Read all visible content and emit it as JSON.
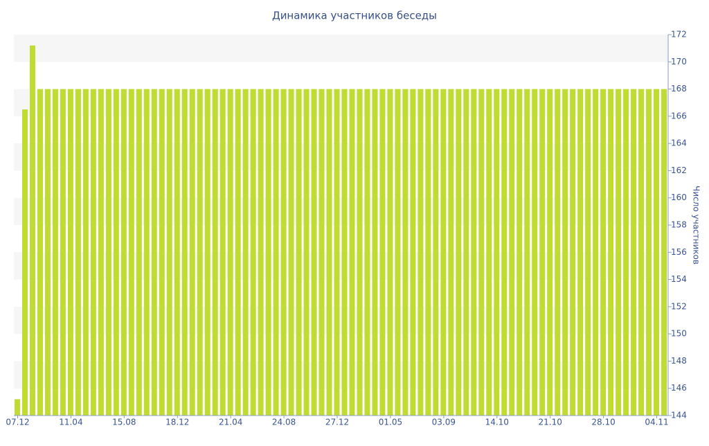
{
  "chart_data": {
    "type": "bar",
    "title": "Динамика участников беседы",
    "y_label": "Число участников",
    "categories": [
      "07.12",
      null,
      null,
      null,
      null,
      null,
      null,
      "11.04",
      null,
      null,
      null,
      null,
      null,
      null,
      "15.08",
      null,
      null,
      null,
      null,
      null,
      null,
      "18.12",
      null,
      null,
      null,
      null,
      null,
      null,
      "21.04",
      null,
      null,
      null,
      null,
      null,
      null,
      "24.08",
      null,
      null,
      null,
      null,
      null,
      null,
      "27.12",
      null,
      null,
      null,
      null,
      null,
      null,
      "01.05",
      null,
      null,
      null,
      null,
      null,
      null,
      "03.09",
      null,
      null,
      null,
      null,
      null,
      null,
      "14.10",
      null,
      null,
      null,
      null,
      null,
      null,
      "21.10",
      null,
      null,
      null,
      null,
      null,
      null,
      "28.10",
      null,
      null,
      null,
      null,
      null,
      null,
      "04.11",
      null
    ],
    "values": [
      145.2,
      166.5,
      171.2,
      168,
      168,
      168,
      168,
      168,
      168,
      168,
      168,
      168,
      168,
      168,
      168,
      168,
      168,
      168,
      168,
      168,
      168,
      168,
      168,
      168,
      168,
      168,
      168,
      168,
      168,
      168,
      168,
      168,
      168,
      168,
      168,
      168,
      168,
      168,
      168,
      168,
      168,
      168,
      168,
      168,
      168,
      168,
      168,
      168,
      168,
      168,
      168,
      168,
      168,
      168,
      168,
      168,
      168,
      168,
      168,
      168,
      168,
      168,
      168,
      168,
      168,
      168,
      168,
      168,
      168,
      168,
      168,
      168,
      168,
      168,
      168,
      168,
      168,
      168,
      168,
      168,
      168,
      168,
      168,
      168,
      168,
      168
    ],
    "color": "#c0dc32",
    "ylim": [
      144,
      172
    ],
    "yticks": [
      144,
      146,
      148,
      150,
      152,
      154,
      156,
      158,
      160,
      162,
      164,
      166,
      168,
      170,
      172
    ],
    "y_axis_side": "right",
    "grid": "bands"
  }
}
